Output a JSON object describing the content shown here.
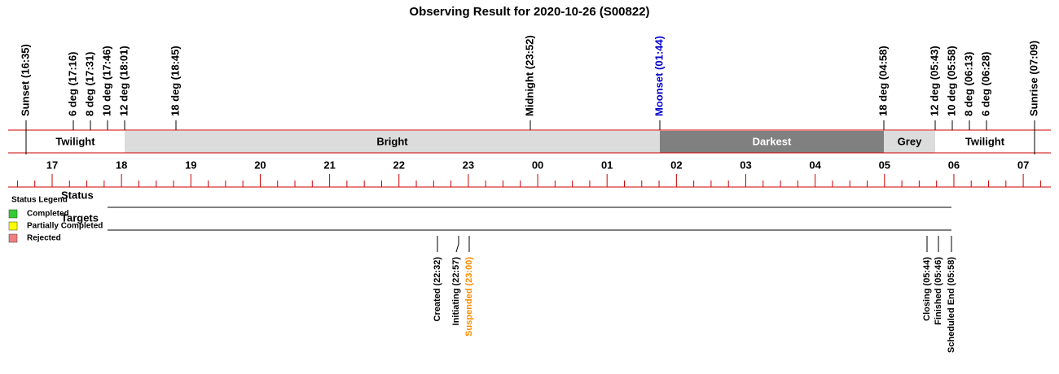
{
  "title": "Observing Result for 2020-10-26 (S00822)",
  "markers": [
    {
      "label": "Sunset (16:35)",
      "color": "#000000"
    },
    {
      "label": "6 deg (17:16)",
      "color": "#000000"
    },
    {
      "label": "8 deg (17:31)",
      "color": "#000000"
    },
    {
      "label": "10 deg (17:46)",
      "color": "#000000"
    },
    {
      "label": "12 deg (18:01)",
      "color": "#000000"
    },
    {
      "label": "18 deg (18:45)",
      "color": "#000000"
    },
    {
      "label": "Midnight (23:52)",
      "color": "#000000"
    },
    {
      "label": "Moonset (01:44)",
      "color": "#0000cc"
    },
    {
      "label": "18 deg (04:58)",
      "color": "#000000"
    },
    {
      "label": "12 deg (05:43)",
      "color": "#000000"
    },
    {
      "label": "10 deg (05:58)",
      "color": "#000000"
    },
    {
      "label": "8 deg (06:13)",
      "color": "#000000"
    },
    {
      "label": "6 deg (06:28)",
      "color": "#000000"
    },
    {
      "label": "Sunrise (07:09)",
      "color": "#000000"
    }
  ],
  "periods": [
    {
      "label": "Twilight",
      "color": "#ffffff"
    },
    {
      "label": "Bright",
      "color": "#dcdcdc"
    },
    {
      "label": "Darkest",
      "color": "#808080"
    },
    {
      "label": "Grey",
      "color": "#dcdcdc"
    },
    {
      "label": "Twilight",
      "color": "#ffffff"
    }
  ],
  "hours": [
    "17",
    "18",
    "19",
    "20",
    "21",
    "22",
    "23",
    "00",
    "01",
    "02",
    "03",
    "04",
    "05",
    "06",
    "07"
  ],
  "legend": {
    "title": "Status Legend",
    "items": [
      {
        "label": "Completed",
        "color": "#33cc33"
      },
      {
        "label": "Partially Completed",
        "color": "#ffff00"
      },
      {
        "label": "Rejected",
        "color": "#f08080"
      }
    ]
  },
  "rows": [
    "Status",
    "Targets"
  ],
  "events": [
    {
      "label": "Created (22:32)",
      "color": "#000000"
    },
    {
      "label": "Initiating (22:57)",
      "color": "#000000"
    },
    {
      "label": "Suspended (23:00)",
      "color": "#ff8c00"
    },
    {
      "label": "Closing (05:44)",
      "color": "#000000"
    },
    {
      "label": "Finished (05:46)",
      "color": "#000000"
    },
    {
      "label": "Scheduled End (05:58)",
      "color": "#000000"
    }
  ]
}
